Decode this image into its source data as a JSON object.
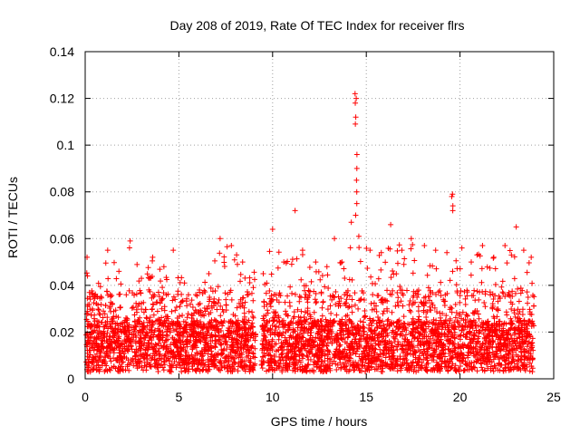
{
  "chart_data": {
    "type": "scatter",
    "title": "Day 208 of 2019, Rate Of TEC Index for receiver flrs",
    "xlabel": "GPS time / hours",
    "ylabel": "ROTI / TECUs",
    "xlim": [
      0,
      25
    ],
    "ylim": [
      0,
      0.14
    ],
    "xticks": [
      0,
      5,
      10,
      15,
      20,
      25
    ],
    "xtick_labels": [
      "0",
      "5",
      "10",
      "15",
      "20",
      "25"
    ],
    "yticks": [
      0,
      0.02,
      0.04,
      0.06,
      0.08,
      0.1,
      0.12,
      0.14
    ],
    "ytick_labels": [
      "0",
      "0.02",
      "0.04",
      "0.06",
      "0.08",
      "0.1",
      "0.12",
      "0.14"
    ],
    "grid": true,
    "marker": "+",
    "color": "#ff0000",
    "data_gap": [
      9.1,
      9.4
    ],
    "series": [
      {
        "name": "ROTI",
        "x": [
          0.1,
          0.5,
          1.2,
          1.8,
          2.4,
          3.0,
          3.6,
          4.2,
          4.7,
          5.3,
          5.9,
          6.6,
          7.2,
          7.8,
          8.4,
          9.5,
          10.0,
          10.6,
          11.2,
          11.6,
          12.3,
          12.9,
          13.3,
          13.7,
          14.2,
          14.4,
          14.5,
          14.6,
          15.2,
          15.8,
          16.3,
          16.9,
          17.4,
          18.1,
          18.7,
          19.3,
          19.6,
          20.1,
          20.6,
          21.2,
          21.8,
          22.4,
          23.0,
          23.4,
          23.8
        ],
        "y": [
          0.052,
          0.035,
          0.055,
          0.046,
          0.059,
          0.043,
          0.052,
          0.048,
          0.055,
          0.041,
          0.036,
          0.045,
          0.06,
          0.057,
          0.05,
          0.045,
          0.064,
          0.05,
          0.072,
          0.055,
          0.05,
          0.048,
          0.06,
          0.05,
          0.067,
          0.122,
          0.096,
          0.061,
          0.055,
          0.054,
          0.066,
          0.055,
          0.06,
          0.057,
          0.055,
          0.054,
          0.079,
          0.056,
          0.05,
          0.057,
          0.052,
          0.057,
          0.065,
          0.055,
          0.052
        ]
      }
    ]
  }
}
